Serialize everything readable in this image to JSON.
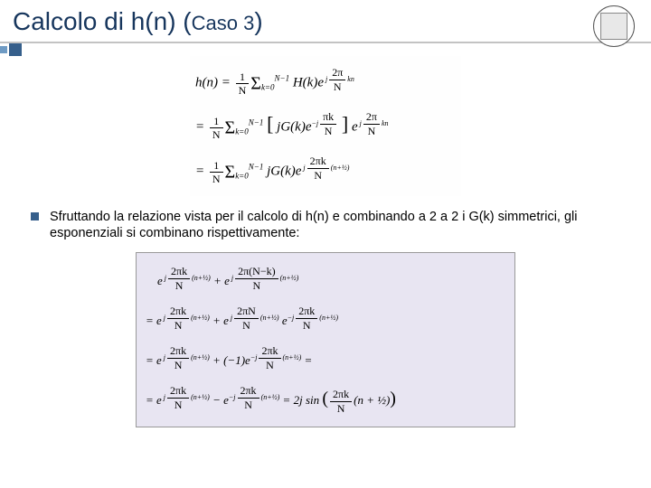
{
  "title": {
    "main": "Calcolo di h(n) (",
    "sub": "Caso 3",
    "close": ")"
  },
  "colors": {
    "title_color": "#17365d",
    "underline_color": "#c3c3c3",
    "bullet_color": "#365f8b",
    "decor_light": "#6f9bc4",
    "decor_dark": "#365f8b",
    "block2_bg": "#e8e5f2",
    "block2_border": "#999999",
    "background": "#ffffff"
  },
  "equations_block1": {
    "line1_lhs": "h(n)",
    "line1_rhs": "(1/N) Σ_{k=0}^{N−1} H(k) e^{j(2π/N)kn}",
    "line2": "= (1/N) Σ_{k=0}^{N−1} [ jG(k) e^{−j(πk/N)} ] e^{j(2π/N)kn}",
    "line3": "= (1/N) Σ_{k=0}^{N−1} jG(k) e^{j(2πk/N)(n+½)}"
  },
  "bullet": {
    "text": "Sfruttando la relazione vista per il calcolo di h(n) e combinando a 2 a 2 i G(k) simmetrici, gli esponenziali si combinano rispettivamente:"
  },
  "equations_block2": {
    "line1": "e^{j(2πk/N)(n+½)} + e^{j(2π(N−k)/N)(n+½)}",
    "line2": "= e^{j(2πk/N)(n+½)} + e^{j(2πN/N)(n+½)} e^{−j(2πk/N)(n+½)}",
    "line3": "= e^{j(2πk/N)(n+½)} + (−1)e^{−j(2πk/N)(n+½)} =",
    "line4": "= e^{j(2πk/N)(n+½)} − e^{−j(2πk/N)(n+½)} = 2j sin( (2πk/N)(n+½) )"
  }
}
